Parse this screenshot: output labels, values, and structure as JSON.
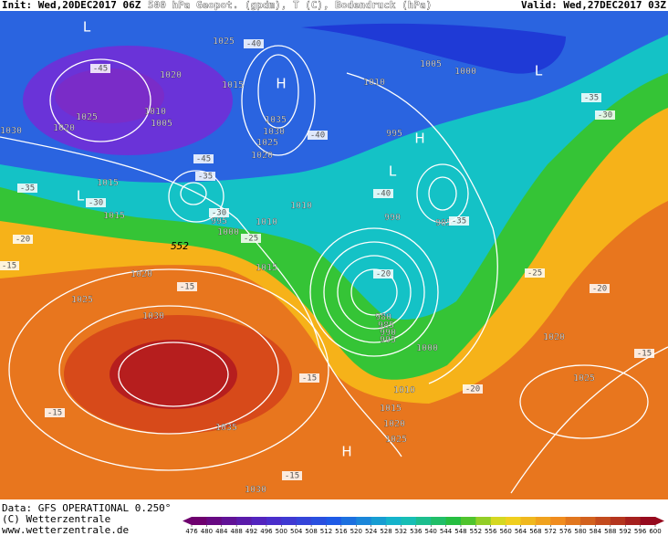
{
  "header": {
    "init": "Init: Wed,20DEC2017 06Z",
    "title": "500 hPa Geopot. (gpdm), T (C), Bodendruck (hPa)",
    "valid": "Valid: Wed,27DEC2017 03Z"
  },
  "map": {
    "highs_lows": [
      "L",
      "H",
      "L",
      "H",
      "L",
      "L",
      "H"
    ],
    "isobar_labels": [
      "1025",
      "1020",
      "1015",
      "1010",
      "1005",
      "1025",
      "1020",
      "1030",
      "1035",
      "1030",
      "1025",
      "1020",
      "1015",
      "1015",
      "995",
      "1000",
      "1010",
      "1010",
      "1015",
      "1020",
      "1025",
      "1030",
      "1035",
      "1030",
      "1005",
      "1000",
      "1010",
      "995",
      "990",
      "985",
      "980",
      "985",
      "990",
      "995",
      "1000",
      "1010",
      "1015",
      "1020",
      "1025",
      "1020",
      "1025"
    ],
    "temperature_labels": [
      "-40",
      "-45",
      "-40",
      "-45",
      "-35",
      "-30",
      "-25",
      "-40",
      "-35",
      "-35",
      "-30",
      "-35",
      "-30",
      "-20",
      "-15",
      "-15",
      "-15",
      "-15",
      "-20",
      "-25",
      "-20",
      "-15",
      "-15",
      "-20"
    ],
    "height_label": "552"
  },
  "footer": {
    "data": "Data: GFS OPERATIONAL 0.250°",
    "copyright": "(C) Wetterzentrale",
    "url": "www.wetterzentrale.de"
  },
  "colorbar": {
    "ticks": [
      476,
      480,
      484,
      488,
      492,
      496,
      500,
      504,
      508,
      512,
      516,
      520,
      524,
      528,
      532,
      536,
      540,
      544,
      548,
      552,
      556,
      560,
      564,
      568,
      572,
      576,
      580,
      584,
      588,
      592,
      596,
      600
    ]
  }
}
